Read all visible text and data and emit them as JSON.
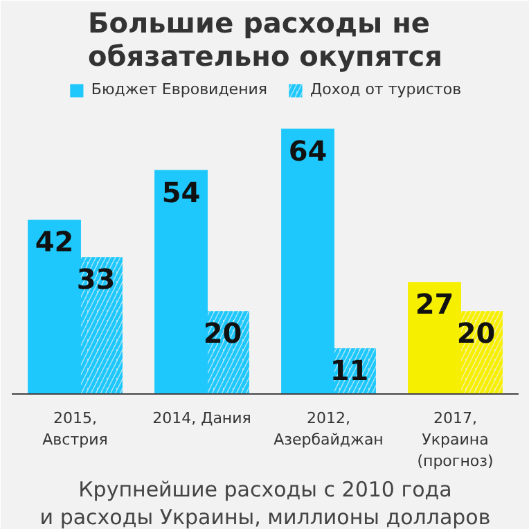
{
  "chart_data": {
    "type": "bar",
    "title": "Большие расходы не\nобязательно окупятся",
    "subtitle": "Крупнейшие расходы с 2010 года\nи расходы Украины, миллионы долларов",
    "categories": [
      "2015,\nАвстрия",
      "2014, Дания",
      "2012,\nАзербайджан",
      "2017,\nУкраина\n(прогноз)"
    ],
    "series": [
      {
        "name": "Бюджет Евровидения",
        "color": "#1ec8fc",
        "colors": [
          "#1ec8fc",
          "#1ec8fc",
          "#1ec8fc",
          "#f7ef00"
        ],
        "values": [
          42,
          54,
          64,
          27
        ]
      },
      {
        "name": "Доход от туристов",
        "color": "#1ec8fc",
        "colors": [
          "#1ec8fc",
          "#1ec8fc",
          "#1ec8fc",
          "#f7ef00"
        ],
        "values": [
          33,
          20,
          11,
          20
        ]
      }
    ],
    "data_labels": true,
    "legend": "top",
    "grid": false
  }
}
